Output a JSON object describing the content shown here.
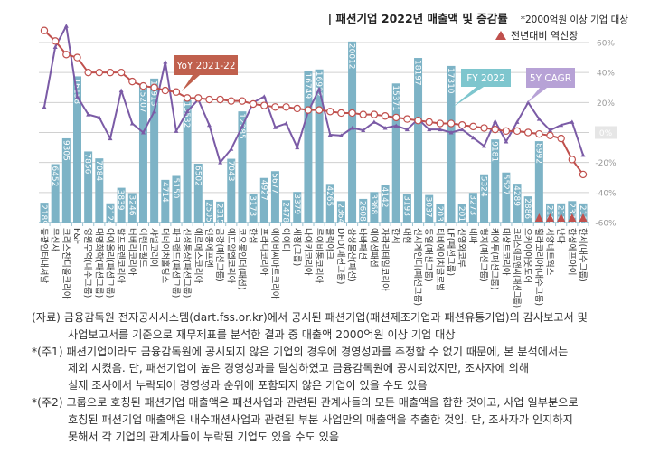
{
  "header": {
    "title": "| 패션기업 2022년 매출액 및 증감률",
    "note": "*2000억원 이상 기업 대상",
    "legend_decline": "전년대비 역신장"
  },
  "chart_data": {
    "type": "bar+line",
    "categories": [
      "동광인터내셔날",
      "무신사",
      "크리스찬디올코리아",
      "F&F",
      "영원무역(내수그룹)",
      "대명화학(패션그룹)",
      "아이올리(패션그룹)",
      "랄프로렌코리아",
      "버버리코리아",
      "이랜드월드",
      "샤넬코리아",
      "더네이쳐홀딩스",
      "파크랜드(패션그룹)",
      "신성통상(패션그룹)",
      "에르메스코리아",
      "인동에프엔",
      "금강(패션그룹)",
      "에프알엘코리아",
      "코오롱인더(패션)",
      "한섬",
      "프라다코리아",
      "에이비씨마트코리아",
      "아이더",
      "세정(그룹)",
      "나이키코리아",
      "루이비통코리아",
      "블랙야크",
      "DFD(패션그룹)",
      "삼성물산(패션)",
      "바바패션",
      "에이션패션",
      "자라리테일코리아",
      "한세",
      "대현",
      "신세계인터(패션그룹)",
      "동일(패션그룹)",
      "티비에이치글로벌",
      "LF(패션그룹)",
      "신영와코루",
      "네파",
      "형지(패션그룹)",
      "케이투(패션그룹)",
      "데상트코리아",
      "크리스에프앤씨(패션그룹)",
      "오케이아웃도어",
      "휠라코리아(내수그룹)",
      "서양네트웍스",
      "난다",
      "한성에프아이",
      "한세(내수그룹)"
    ],
    "series": [
      {
        "name": "FY 2022",
        "type": "bar",
        "values": [
          2189,
          6452,
          9305,
          16158,
          7856,
          7084,
          2124,
          3839,
          3246,
          15207,
          15913,
          4714,
          5150,
          13532,
          6502,
          2505,
          2315,
          7043,
          12285,
          3173,
          4927,
          5677,
          2478,
          3379,
          16749,
          16922,
          4265,
          2364,
          20012,
          2608,
          3368,
          4142,
          15371,
          3193,
          18197,
          3037,
          2031,
          17310,
          2013,
          3273,
          5324,
          9181,
          5527,
          4289,
          2886,
          8992,
          2109,
          2118,
          2370,
          2113
        ]
      },
      {
        "name": "YoY 2021-22",
        "type": "line",
        "unit": "%",
        "values": [
          68,
          61,
          52,
          50,
          40,
          40,
          40,
          40,
          34,
          31,
          30,
          28,
          27,
          23,
          23,
          22,
          22,
          21,
          21,
          19,
          18,
          17,
          17,
          16,
          15,
          15,
          14,
          13,
          13,
          12,
          12,
          11,
          10,
          9,
          8,
          7,
          6,
          6,
          5,
          4,
          3,
          2,
          1,
          1,
          0,
          -1,
          -2,
          -4,
          -18,
          -28
        ]
      },
      {
        "name": "5Y CAGR",
        "type": "line",
        "unit": "%",
        "values": [
          17,
          57,
          71,
          24,
          12,
          10,
          -4,
          28,
          6,
          0,
          14,
          47,
          1,
          14,
          22,
          5,
          -20,
          -11,
          4,
          20,
          24,
          3.5,
          6,
          -10,
          14,
          29,
          -1.5,
          -2,
          3,
          1.5,
          7,
          3,
          4.5,
          2,
          9,
          2,
          2,
          0,
          2,
          -3.5,
          -9,
          7.5,
          -6,
          7,
          20,
          9,
          1.5,
          5,
          7,
          -15
        ]
      }
    ],
    "decline_flags": [
      46,
      47,
      48,
      49,
      50
    ],
    "y_right": {
      "ticks": [
        "60%",
        "40%",
        "20%",
        "0%",
        "-20%",
        "-40%",
        "-60%"
      ],
      "range": [
        -60,
        60
      ]
    },
    "bar_range": [
      0,
      20000
    ],
    "grid": true,
    "colors": {
      "bar": "#7DB3C6",
      "yoy": "#C0504D",
      "cagr": "#7B5BA6",
      "decline": "#C0504D",
      "fy_callout": "#7EC6CE",
      "cagr_callout": "#B7A2D6",
      "yoy_callout": "#C0604D"
    }
  },
  "footnotes": {
    "source_1": "(자료) 금융감독원 전자공시시스템(dart.fss.or.kr)에서 공시된 패션기업(패션제조기업과 패션유통기업)의 감사보고서 및",
    "source_2": "사업보고서를 기준으로 재무제표를 분석한 결과 중 매출액 2000억원 이상 기업 대상",
    "note1_1": "*(주1) 패션기업이라도 금융감독원에 공시되지 않은 기업의 경우에 경영성과를 추정할 수 없기 때문에, 본 분석에서는",
    "note1_2": "제외 시켰음. 단, 패션기업이 높은 경영성과를 달성하였고 금융감독원에 공시되었지만, 조사자에 의해",
    "note1_3": "실제 조사에서 누락되어 경영성과 순위에 포함되지 않은 기업이 있을 수도 있음",
    "note2_1": "*(주2) 그룹으로 호칭된 패션기업 매출액은 패션사업과 관련된 관계사들의 모든 매출액을 합한 것이고, 사업 일부분으로",
    "note2_2": "호칭된 패션기업 매출액은 내수패션사업과 관련된 부분 사업만의 매출액을 추출한 것임. 단, 조사자가 인지하지",
    "note2_3": "못해서 각 기업의 관계사들이 누락된 기업도 있을 수도 있음"
  }
}
